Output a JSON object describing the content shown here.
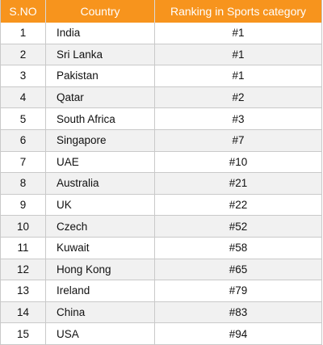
{
  "table": {
    "headers": [
      "S.NO",
      "Country",
      "Ranking in Sports category"
    ],
    "header_color": "#f7941d",
    "rows": [
      {
        "sno": "1",
        "country": "India",
        "rank": "#1"
      },
      {
        "sno": "2",
        "country": "Sri Lanka",
        "rank": "#1"
      },
      {
        "sno": "3",
        "country": "Pakistan",
        "rank": "#1"
      },
      {
        "sno": "4",
        "country": "Qatar",
        "rank": "#2"
      },
      {
        "sno": "5",
        "country": "South Africa",
        "rank": "#3"
      },
      {
        "sno": "6",
        "country": "Singapore",
        "rank": "#7"
      },
      {
        "sno": "7",
        "country": "UAE",
        "rank": "#10"
      },
      {
        "sno": "8",
        "country": "Australia",
        "rank": "#21"
      },
      {
        "sno": "9",
        "country": "UK",
        "rank": "#22"
      },
      {
        "sno": "10",
        "country": "Czech",
        "rank": "#52"
      },
      {
        "sno": "11",
        "country": "Kuwait",
        "rank": "#58"
      },
      {
        "sno": "12",
        "country": "Hong Kong",
        "rank": "#65"
      },
      {
        "sno": "13",
        "country": "Ireland",
        "rank": "#79"
      },
      {
        "sno": "14",
        "country": "China",
        "rank": "#83"
      },
      {
        "sno": "15",
        "country": "USA",
        "rank": "#94"
      }
    ]
  }
}
